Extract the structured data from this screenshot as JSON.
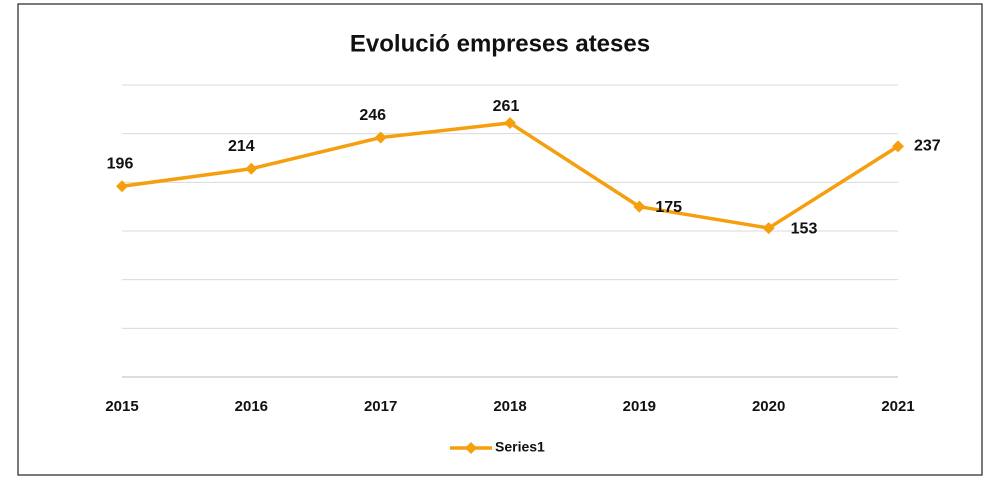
{
  "chart_data": {
    "type": "line",
    "title": "Evolució empreses ateses",
    "categories": [
      "2015",
      "2016",
      "2017",
      "2018",
      "2019",
      "2020",
      "2021"
    ],
    "series": [
      {
        "name": "Series1",
        "color": "#f59f0e",
        "values": [
          196,
          214,
          246,
          261,
          175,
          153,
          237
        ]
      }
    ],
    "ylim": [
      0,
      300
    ],
    "yticks": [
      0,
      50,
      100,
      150,
      200,
      250,
      300
    ],
    "grid": true,
    "legend": "bottom"
  }
}
